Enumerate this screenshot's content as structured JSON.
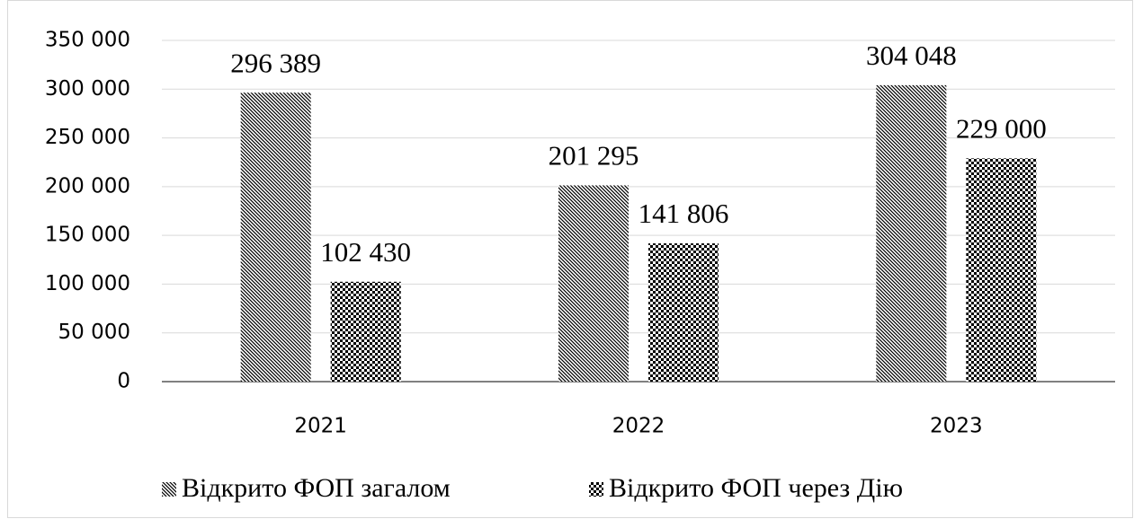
{
  "chart_data": {
    "type": "bar",
    "categories": [
      "2021",
      "2022",
      "2023"
    ],
    "series": [
      {
        "name": "Відкрито ФОП загалом",
        "color": "#000000",
        "pattern": "diagonal",
        "values": [
          296389,
          201295,
          304048
        ],
        "value_labels": [
          "296 389",
          "201 295",
          "304 048"
        ]
      },
      {
        "name": "Відкрито ФОП через Дію",
        "color": "#000000",
        "pattern": "checker",
        "values": [
          102430,
          141806,
          229000
        ],
        "value_labels": [
          "102 430",
          "141 806",
          "229 000"
        ]
      }
    ],
    "ylim": [
      0,
      350000
    ],
    "yticks": [
      0,
      {
        "value": 50000,
        "label": "50 000"
      },
      {
        "value": 100000,
        "label": "100 000"
      },
      {
        "value": 150000,
        "label": "150 000"
      },
      {
        "value": 200000,
        "label": "200 000"
      },
      {
        "value": 250000,
        "label": "250 000"
      },
      {
        "value": 300000,
        "label": "300 000"
      },
      {
        "value": 350000,
        "label": "350 000"
      }
    ],
    "grid": true,
    "legend": "bottom"
  }
}
